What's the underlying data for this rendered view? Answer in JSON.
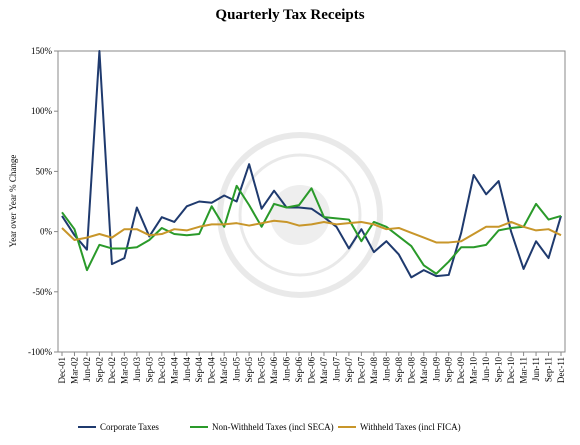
{
  "chart_data": {
    "type": "line",
    "title": "Quarterly Tax Receipts",
    "y_label": "Year over Year % Change",
    "categories": [
      "Dec-01",
      "Mar-02",
      "Jun-02",
      "Sep-02",
      "Dec-02",
      "Mar-03",
      "Jun-03",
      "Sep-03",
      "Dec-03",
      "Mar-04",
      "Jun-04",
      "Sep-04",
      "Dec-04",
      "Mar-05",
      "Jun-05",
      "Sep-05",
      "Dec-05",
      "Mar-06",
      "Jun-06",
      "Sep-06",
      "Dec-06",
      "Mar-07",
      "Jun-07",
      "Sep-07",
      "Dec-07",
      "Mar-08",
      "Jun-08",
      "Sep-08",
      "Dec-08",
      "Mar-09",
      "Jun-09",
      "Sep-09",
      "Dec-09",
      "Mar-10",
      "Jun-10",
      "Sep-10",
      "Dec-10",
      "Mar-11",
      "Jun-11",
      "Sep-11",
      "Dec-11"
    ],
    "series": [
      {
        "name": "Corporate Taxes",
        "color": "#1f3a6e",
        "values": [
          13,
          -3,
          -15,
          150,
          -27,
          -22,
          20,
          -4,
          12,
          8,
          21,
          25,
          24,
          30,
          25,
          56,
          19,
          34,
          20,
          20,
          19,
          12,
          4,
          -14,
          2,
          -17,
          -8,
          -19,
          -38,
          -32,
          -37,
          -36,
          -1,
          47,
          31,
          42,
          0,
          -31,
          -8,
          -22,
          13
        ]
      },
      {
        "name": "Non-Withheld Taxes (incl SECA)",
        "color": "#2a9a2a",
        "values": [
          16,
          2,
          -32,
          -11,
          -14,
          -14,
          -13,
          -7,
          3,
          -2,
          -3,
          -2,
          21,
          4,
          38,
          22,
          4,
          23,
          20,
          22,
          36,
          12,
          11,
          10,
          -8,
          8,
          4,
          -4,
          -12,
          -28,
          -35,
          -25,
          -13,
          -13,
          -11,
          1,
          3,
          4,
          23,
          10,
          13
        ]
      },
      {
        "name": "Withheld Taxes (incl FICA)",
        "color": "#c8962a",
        "values": [
          3,
          -7,
          -5,
          -2,
          -5,
          2,
          2,
          -3,
          -2,
          2,
          1,
          4,
          6,
          6,
          7,
          5,
          7,
          9,
          8,
          5,
          6,
          8,
          6,
          7,
          8,
          6,
          2,
          3,
          -1,
          -5,
          -9,
          -9,
          -8,
          -2,
          4,
          4,
          8,
          4,
          1,
          2,
          -3
        ]
      }
    ],
    "ylim": [
      -100,
      150
    ],
    "yticks": [
      {
        "value": -100,
        "label": "-100%"
      },
      {
        "value": -50,
        "label": "-50%"
      },
      {
        "value": 0,
        "label": "0%"
      },
      {
        "value": 50,
        "label": "50%"
      },
      {
        "value": 100,
        "label": "100%"
      },
      {
        "value": 150,
        "label": "150%"
      }
    ],
    "legend": "bottom"
  }
}
